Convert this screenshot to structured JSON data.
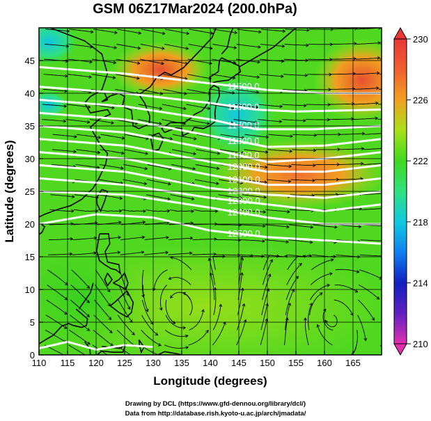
{
  "title": "GSM 06Z17Mar2024 (200.0hPa)",
  "x_axis": {
    "label": "Longitude (degrees)",
    "min": 110,
    "max": 170,
    "ticks": [
      110,
      115,
      120,
      125,
      130,
      135,
      140,
      145,
      150,
      155,
      160,
      165
    ]
  },
  "y_axis": {
    "label": "Latitude  (degrees)",
    "min": 0,
    "max": 50,
    "ticks": [
      0,
      5,
      10,
      15,
      20,
      25,
      30,
      35,
      40,
      45
    ]
  },
  "colorbar": {
    "min": 210,
    "max": 230,
    "ticks": [
      230,
      226,
      222,
      218,
      214,
      210
    ],
    "stops": [
      {
        "v": 210,
        "color": "#e030b0"
      },
      {
        "v": 212,
        "color": "#6020c0"
      },
      {
        "v": 214,
        "color": "#1020c0"
      },
      {
        "v": 216,
        "color": "#1080f0"
      },
      {
        "v": 218,
        "color": "#10c8e0"
      },
      {
        "v": 220,
        "color": "#30e080"
      },
      {
        "v": 222,
        "color": "#40d820"
      },
      {
        "v": 224,
        "color": "#a8e018"
      },
      {
        "v": 226,
        "color": "#f0a020"
      },
      {
        "v": 228,
        "color": "#f06030"
      },
      {
        "v": 230,
        "color": "#e83838"
      }
    ]
  },
  "height_contours": {
    "color": "#ffffff",
    "labels": [
      "11500.0",
      "11600.0",
      "11700.0",
      "11800.0",
      "11900.0",
      "12000.0",
      "12100.0",
      "12200.0",
      "12300.0",
      "12400.0",
      "12500.0"
    ],
    "lines": [
      [
        [
          110,
          44
        ],
        [
          125,
          43
        ],
        [
          140,
          41.5
        ],
        [
          150,
          40.5
        ],
        [
          160,
          40
        ],
        [
          170,
          40
        ]
      ],
      [
        [
          110,
          41
        ],
        [
          125,
          40
        ],
        [
          140,
          38.5
        ],
        [
          148,
          37.5
        ],
        [
          155,
          37.2
        ],
        [
          170,
          37.5
        ]
      ],
      [
        [
          110,
          39
        ],
        [
          125,
          38
        ],
        [
          140,
          36
        ],
        [
          148,
          34.5
        ],
        [
          158,
          34.5
        ],
        [
          170,
          35
        ]
      ],
      [
        [
          110,
          37
        ],
        [
          125,
          36
        ],
        [
          140,
          33.5
        ],
        [
          150,
          31.8
        ],
        [
          160,
          32
        ],
        [
          170,
          33
        ]
      ],
      [
        [
          110,
          35
        ],
        [
          125,
          34
        ],
        [
          140,
          31.5
        ],
        [
          150,
          29.5
        ],
        [
          160,
          30
        ],
        [
          170,
          31
        ]
      ],
      [
        [
          110,
          33
        ],
        [
          125,
          32
        ],
        [
          140,
          29.5
        ],
        [
          150,
          28
        ],
        [
          160,
          28
        ],
        [
          170,
          29
        ]
      ],
      [
        [
          110,
          31
        ],
        [
          125,
          30
        ],
        [
          140,
          27.5
        ],
        [
          150,
          26
        ],
        [
          160,
          26
        ],
        [
          170,
          27
        ]
      ],
      [
        [
          110,
          29
        ],
        [
          125,
          28
        ],
        [
          140,
          25.5
        ],
        [
          150,
          24.5
        ],
        [
          160,
          24
        ],
        [
          170,
          25
        ]
      ],
      [
        [
          110,
          27
        ],
        [
          125,
          26
        ],
        [
          140,
          24
        ],
        [
          150,
          23
        ],
        [
          160,
          22
        ],
        [
          170,
          23
        ]
      ],
      [
        [
          110,
          25
        ],
        [
          125,
          24.5
        ],
        [
          140,
          22.5
        ],
        [
          150,
          21
        ],
        [
          160,
          20
        ],
        [
          170,
          20
        ]
      ],
      [
        [
          110,
          20
        ],
        [
          120,
          21.5
        ],
        [
          130,
          21
        ],
        [
          140,
          19
        ],
        [
          150,
          18
        ],
        [
          160,
          17.5
        ],
        [
          170,
          17
        ]
      ],
      [
        [
          110,
          1
        ],
        [
          115,
          2
        ],
        [
          120,
          0.8
        ],
        [
          125,
          1.5
        ],
        [
          130,
          1.2
        ]
      ]
    ]
  },
  "credits": [
    "Drawing by DCL (https://www.gfd-dennou.org/library/dcl/)",
    "Data from http://database.rish.kyoto-u.ac.jp/arch/jmadata/"
  ]
}
